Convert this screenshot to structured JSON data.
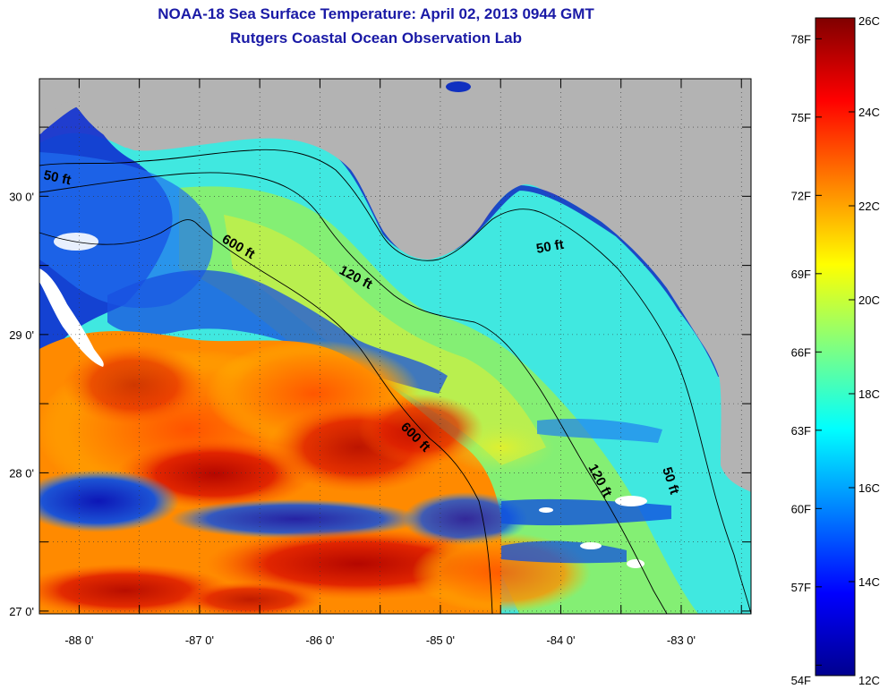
{
  "header": {
    "title": "NOAA-18 Sea Surface Temperature:  April 02, 2013 0944 GMT",
    "subtitle": "Rutgers Coastal Ocean Observation Lab"
  },
  "axes": {
    "lat_ticks": [
      {
        "value": 30,
        "label": "30 0'"
      },
      {
        "value": 29,
        "label": "29 0'"
      },
      {
        "value": 28,
        "label": "28 0'"
      },
      {
        "value": 27,
        "label": "27 0'"
      }
    ],
    "lon_ticks": [
      {
        "value": -88,
        "label": "-88 0'"
      },
      {
        "value": -87,
        "label": "-87 0'"
      },
      {
        "value": -86,
        "label": "-86 0'"
      },
      {
        "value": -85,
        "label": "-85 0'"
      },
      {
        "value": -84,
        "label": "-84 0'"
      },
      {
        "value": -83,
        "label": "-83 0'"
      }
    ],
    "lat_range": [
      26.98,
      30.85
    ],
    "lon_range": [
      -88.33,
      -82.42
    ]
  },
  "contours": {
    "labels": [
      "50 ft",
      "600 ft",
      "120 ft",
      "50 ft",
      "600 ft",
      "120 ft",
      "50 ft"
    ]
  },
  "colorbar": {
    "celsius_labels": [
      "26C",
      "24C",
      "22C",
      "20C",
      "18C",
      "16C",
      "14C",
      "12C"
    ],
    "fahrenheit_labels": [
      "78F",
      "75F",
      "72F",
      "69F",
      "66F",
      "63F",
      "60F",
      "57F",
      "54F"
    ],
    "colors": [
      "#00008f",
      "#0000ff",
      "#0080ff",
      "#00ffff",
      "#80ff80",
      "#ffff00",
      "#ff8000",
      "#ff0000",
      "#800000"
    ]
  },
  "colors": {
    "land": "#b3b3b3",
    "title": "#1a1aa6",
    "cloud": "#ffffff"
  }
}
